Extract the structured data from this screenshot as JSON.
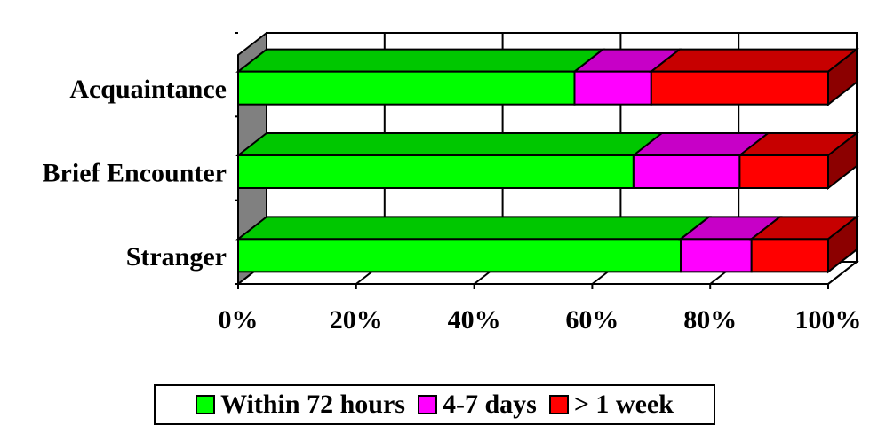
{
  "chart_data": {
    "type": "bar",
    "orientation": "horizontal",
    "stacked": "percent",
    "style": "3d",
    "categories": [
      "Acquaintance",
      "Brief Encounter",
      "Stranger"
    ],
    "series": [
      {
        "name": "Within 72 hours",
        "color": "#00ff00",
        "values": [
          57,
          67,
          75
        ]
      },
      {
        "name": "4-7 days",
        "color": "#ff00ff",
        "values": [
          13,
          18,
          12
        ]
      },
      {
        "name": "> 1 week",
        "color": "#ff0000",
        "values": [
          30,
          15,
          13
        ]
      }
    ],
    "x_ticks": [
      "0%",
      "20%",
      "40%",
      "60%",
      "80%",
      "100%"
    ],
    "xlim": [
      0,
      100
    ],
    "grid": true,
    "legend_position": "bottom"
  }
}
